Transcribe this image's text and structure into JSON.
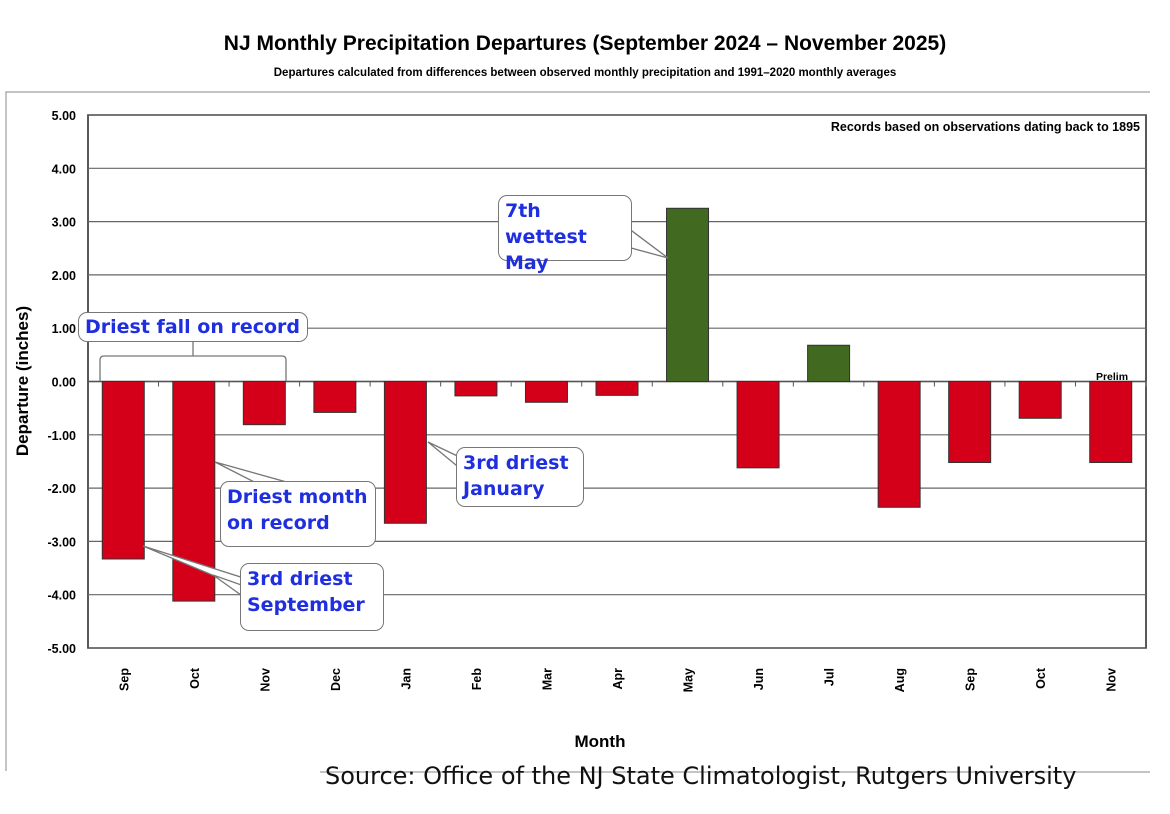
{
  "chart_data": {
    "type": "bar",
    "title": "NJ Monthly  Precipitation Departures (September 2024 – November 2025)",
    "subtitle": "Departures calculated from differences between observed monthly precipitation and 1991–2020 monthly  averages",
    "xlabel": "Month",
    "ylabel": "Departure (inches)",
    "ylim": [
      -5,
      5
    ],
    "yticks": [
      "5.00",
      "4.00",
      "3.00",
      "2.00",
      "1.00",
      "0.00",
      "-1.00",
      "-2.00",
      "-3.00",
      "-4.00",
      "-5.00"
    ],
    "grid": true,
    "categories": [
      "Sep",
      "Oct",
      "Nov",
      "Dec",
      "Jan",
      "Feb",
      "Mar",
      "Apr",
      "May",
      "Jun",
      "Jul",
      "Aug",
      "Sep",
      "Oct",
      "Nov"
    ],
    "values": [
      -3.33,
      -4.12,
      -0.81,
      -0.58,
      -2.66,
      -0.27,
      -0.39,
      -0.26,
      3.25,
      -1.62,
      0.68,
      -2.36,
      -1.52,
      -0.69,
      -1.52
    ],
    "colors": {
      "positive": "#41691f",
      "negative": "#d4001a"
    },
    "records_note": "Records based on observations dating back to 1895",
    "prelim_label": "Prelim",
    "annotations": [
      {
        "text": "Driest fall on record"
      },
      {
        "text": "7th wettest May"
      },
      {
        "text": "3rd driest January"
      },
      {
        "text": "Driest month on record"
      },
      {
        "text": "3rd driest September"
      }
    ]
  },
  "source": "Source: Office of the NJ State Climatologist, Rutgers University"
}
